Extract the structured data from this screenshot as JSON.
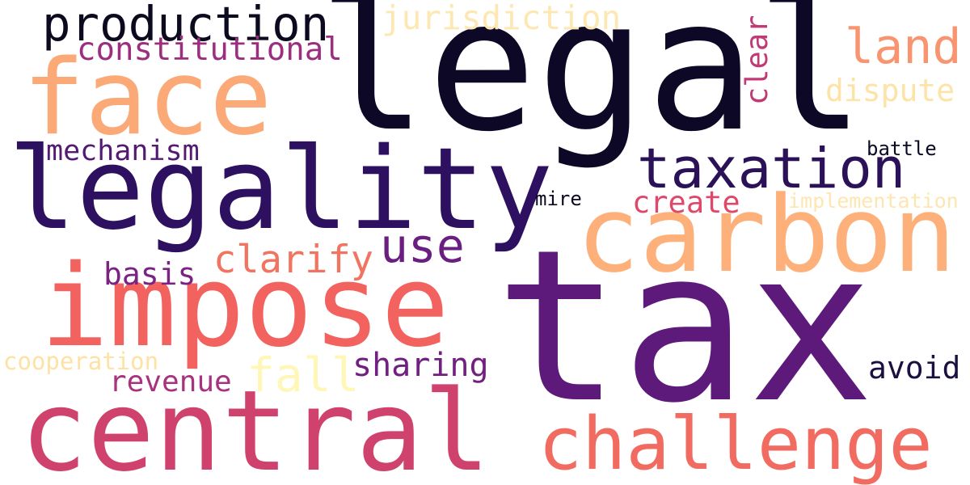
{
  "words": [
    {
      "text": "legal",
      "color": "#0c0826"
    },
    {
      "text": "tax",
      "color": "#5d1a7a"
    },
    {
      "text": "legality",
      "color": "#2d1160"
    },
    {
      "text": "carbon",
      "color": "#fdb07a"
    },
    {
      "text": "impose",
      "color": "#f2635f"
    },
    {
      "text": "central",
      "color": "#d0426e"
    },
    {
      "text": "face",
      "color": "#fca978"
    },
    {
      "text": "challenge",
      "color": "#f26b60"
    },
    {
      "text": "taxation",
      "color": "#2a1158"
    },
    {
      "text": "production",
      "color": "#0b0a1f"
    },
    {
      "text": "land",
      "color": "#f99471"
    },
    {
      "text": "use",
      "color": "#6a1e80"
    },
    {
      "text": "fall",
      "color": "#fff7b8"
    },
    {
      "text": "clarify",
      "color": "#f07460"
    },
    {
      "text": "jurisdiction",
      "color": "#fde7b2"
    },
    {
      "text": "constitutional",
      "color": "#9c2e7f"
    },
    {
      "text": "mechanism",
      "color": "#521a72"
    },
    {
      "text": "dispute",
      "color": "#fde3a8"
    },
    {
      "text": "sharing",
      "color": "#721f81"
    },
    {
      "text": "avoid",
      "color": "#1b1040"
    },
    {
      "text": "create",
      "color": "#e0486a"
    },
    {
      "text": "basis",
      "color": "#7b2382"
    },
    {
      "text": "revenue",
      "color": "#a8327d"
    },
    {
      "text": "clear",
      "color": "#c03a76"
    },
    {
      "text": "cooperation",
      "color": "#fde2a3"
    },
    {
      "text": "implementation",
      "color": "#fde6b0"
    },
    {
      "text": "battle",
      "color": "#0a0a24"
    },
    {
      "text": "mire",
      "color": "#0c0a22"
    }
  ]
}
